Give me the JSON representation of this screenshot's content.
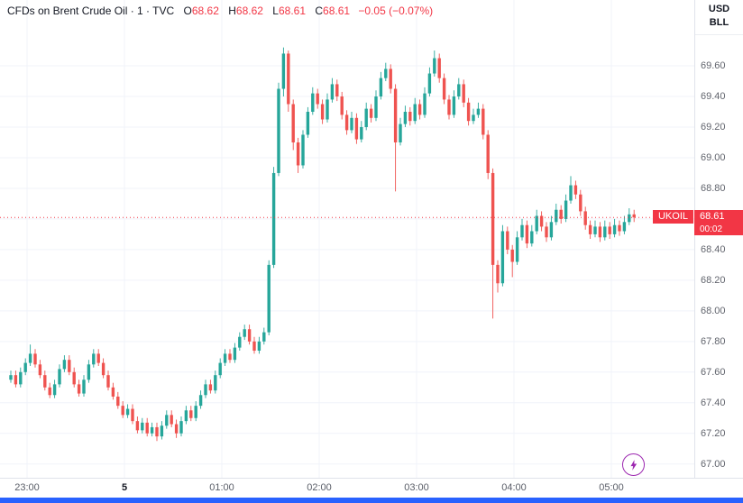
{
  "header": {
    "symbol_title": "CFDs on Brent Crude Oil · 1 · TVC",
    "ohlc": {
      "open_label": "O",
      "open": "68.62",
      "high_label": "H",
      "high": "68.62",
      "low_label": "L",
      "low": "68.61",
      "close_label": "C",
      "close": "68.61",
      "change": "−0.05 (−0.07%)"
    }
  },
  "price_axis": {
    "currency": "USD",
    "unit": "BLL",
    "price_label": {
      "symbol": "UKOIL",
      "price": "68.61",
      "countdown": "00:02"
    }
  },
  "icons": {
    "lightning": "⚡"
  },
  "colors": {
    "up": "#26a69a",
    "down": "#ef5350",
    "accent_red": "#f23645",
    "grid": "#f0f3fa",
    "scrollbar_blue": "#2962ff",
    "lightning_purple": "#9c27b0",
    "title_text": "#131722",
    "axis_text": "#62656e"
  },
  "chart_data": {
    "type": "candlestick",
    "title": "CFDs on Brent Crude Oil",
    "symbol": "UKOIL",
    "exchange": "TVC",
    "timeframe": "1",
    "unit": "USD/BLL",
    "current_price": 68.61,
    "price_range": [
      66.91,
      70.03
    ],
    "y_ticks": [
      69.6,
      69.4,
      69.2,
      69.0,
      68.8,
      68.6,
      68.4,
      68.2,
      68.0,
      67.8,
      67.6,
      67.4,
      67.2,
      67.0
    ],
    "x_ticks": [
      {
        "text": "23:00",
        "min": 10
      },
      {
        "text": "5",
        "min": 70,
        "bold": true
      },
      {
        "text": "01:00",
        "min": 130
      },
      {
        "text": "02:00",
        "min": 190
      },
      {
        "text": "03:00",
        "min": 250
      },
      {
        "text": "04:00",
        "min": 310
      },
      {
        "text": "05:00",
        "min": 370
      }
    ],
    "start_time": "22:50",
    "candle_interval_minutes": 3,
    "candles": [
      [
        67.55,
        67.61,
        67.53,
        67.58
      ],
      [
        67.58,
        67.61,
        67.5,
        67.52
      ],
      [
        67.52,
        67.63,
        67.5,
        67.6
      ],
      [
        67.6,
        67.69,
        67.58,
        67.66
      ],
      [
        67.66,
        67.78,
        67.64,
        67.72
      ],
      [
        67.72,
        67.75,
        67.63,
        67.65
      ],
      [
        67.65,
        67.68,
        67.56,
        67.58
      ],
      [
        67.58,
        67.61,
        67.48,
        67.5
      ],
      [
        67.5,
        67.53,
        67.43,
        67.45
      ],
      [
        67.45,
        67.55,
        67.43,
        67.52
      ],
      [
        67.52,
        67.65,
        67.5,
        67.62
      ],
      [
        67.62,
        67.71,
        67.6,
        67.68
      ],
      [
        67.68,
        67.71,
        67.58,
        67.6
      ],
      [
        67.6,
        67.63,
        67.5,
        67.52
      ],
      [
        67.52,
        67.55,
        67.44,
        67.46
      ],
      [
        67.46,
        67.58,
        67.44,
        67.55
      ],
      [
        67.55,
        67.68,
        67.53,
        67.65
      ],
      [
        67.65,
        67.75,
        67.63,
        67.72
      ],
      [
        67.72,
        67.75,
        67.64,
        67.66
      ],
      [
        67.66,
        67.69,
        67.56,
        67.58
      ],
      [
        67.58,
        67.61,
        67.48,
        67.5
      ],
      [
        67.5,
        67.53,
        67.42,
        67.44
      ],
      [
        67.44,
        67.47,
        67.36,
        67.38
      ],
      [
        67.38,
        67.41,
        67.3,
        67.32
      ],
      [
        67.32,
        67.39,
        67.3,
        67.36
      ],
      [
        67.36,
        67.39,
        67.26,
        67.28
      ],
      [
        67.28,
        67.31,
        67.2,
        67.22
      ],
      [
        67.22,
        67.3,
        67.2,
        67.27
      ],
      [
        67.27,
        67.3,
        67.18,
        67.2
      ],
      [
        67.2,
        67.27,
        67.18,
        67.24
      ],
      [
        67.24,
        67.27,
        67.15,
        67.18
      ],
      [
        67.18,
        67.28,
        67.16,
        67.25
      ],
      [
        67.25,
        67.35,
        67.23,
        67.32
      ],
      [
        67.32,
        67.35,
        67.24,
        67.26
      ],
      [
        67.26,
        67.29,
        67.17,
        67.2
      ],
      [
        67.2,
        67.31,
        67.18,
        67.28
      ],
      [
        67.28,
        67.38,
        67.26,
        67.35
      ],
      [
        67.35,
        67.38,
        67.28,
        67.3
      ],
      [
        67.3,
        67.41,
        67.28,
        67.38
      ],
      [
        67.38,
        67.48,
        67.36,
        67.45
      ],
      [
        67.45,
        67.55,
        67.43,
        67.52
      ],
      [
        67.52,
        67.55,
        67.46,
        67.48
      ],
      [
        67.48,
        67.61,
        67.46,
        67.58
      ],
      [
        67.58,
        67.69,
        67.56,
        67.66
      ],
      [
        67.66,
        67.75,
        67.64,
        67.72
      ],
      [
        67.72,
        67.75,
        67.66,
        67.68
      ],
      [
        67.68,
        67.79,
        67.66,
        67.76
      ],
      [
        67.76,
        67.86,
        67.74,
        67.83
      ],
      [
        67.83,
        67.91,
        67.81,
        67.88
      ],
      [
        67.88,
        67.91,
        67.78,
        67.8
      ],
      [
        67.8,
        67.83,
        67.72,
        67.74
      ],
      [
        67.74,
        67.83,
        67.72,
        67.8
      ],
      [
        67.8,
        67.89,
        67.78,
        67.86
      ],
      [
        67.86,
        68.33,
        67.84,
        68.3
      ],
      [
        68.3,
        68.94,
        68.28,
        68.9
      ],
      [
        68.9,
        69.49,
        68.88,
        69.45
      ],
      [
        69.45,
        69.72,
        69.4,
        69.68
      ],
      [
        69.68,
        69.7,
        69.3,
        69.35
      ],
      [
        69.35,
        69.38,
        69.05,
        69.1
      ],
      [
        69.1,
        69.13,
        68.9,
        68.95
      ],
      [
        68.95,
        69.18,
        68.93,
        69.15
      ],
      [
        69.15,
        69.33,
        69.13,
        69.3
      ],
      [
        69.3,
        69.46,
        69.28,
        69.42
      ],
      [
        69.42,
        69.45,
        69.32,
        69.35
      ],
      [
        69.35,
        69.38,
        69.22,
        69.25
      ],
      [
        69.25,
        69.42,
        69.23,
        69.38
      ],
      [
        69.38,
        69.52,
        69.36,
        69.48
      ],
      [
        69.48,
        69.51,
        69.37,
        69.4
      ],
      [
        69.4,
        69.43,
        69.25,
        69.28
      ],
      [
        69.28,
        69.31,
        69.15,
        69.18
      ],
      [
        69.18,
        69.3,
        69.16,
        69.26
      ],
      [
        69.26,
        69.29,
        69.09,
        69.12
      ],
      [
        69.12,
        69.24,
        69.1,
        69.2
      ],
      [
        69.2,
        69.36,
        69.18,
        69.32
      ],
      [
        69.32,
        69.35,
        69.23,
        69.26
      ],
      [
        69.26,
        69.44,
        69.24,
        69.4
      ],
      [
        69.4,
        69.56,
        69.38,
        69.52
      ],
      [
        69.52,
        69.62,
        69.5,
        69.58
      ],
      [
        69.58,
        69.61,
        69.42,
        69.45
      ],
      [
        69.45,
        69.48,
        68.78,
        69.1
      ],
      [
        69.1,
        69.26,
        69.08,
        69.22
      ],
      [
        69.22,
        69.34,
        69.2,
        69.3
      ],
      [
        69.3,
        69.33,
        69.21,
        69.24
      ],
      [
        69.24,
        69.39,
        69.22,
        69.35
      ],
      [
        69.35,
        69.38,
        69.25,
        69.28
      ],
      [
        69.28,
        69.46,
        69.26,
        69.42
      ],
      [
        69.42,
        69.59,
        69.4,
        69.55
      ],
      [
        69.55,
        69.7,
        69.53,
        69.65
      ],
      [
        69.65,
        69.68,
        69.49,
        69.52
      ],
      [
        69.52,
        69.55,
        69.35,
        69.38
      ],
      [
        69.38,
        69.41,
        69.25,
        69.28
      ],
      [
        69.28,
        69.44,
        69.26,
        69.4
      ],
      [
        69.4,
        69.52,
        69.38,
        69.48
      ],
      [
        69.48,
        69.51,
        69.33,
        69.36
      ],
      [
        69.36,
        69.39,
        69.21,
        69.24
      ],
      [
        69.24,
        69.32,
        69.22,
        69.28
      ],
      [
        69.28,
        69.36,
        69.26,
        69.32
      ],
      [
        69.32,
        69.35,
        69.12,
        69.15
      ],
      [
        69.15,
        69.18,
        68.86,
        68.9
      ],
      [
        68.9,
        68.93,
        67.95,
        68.3
      ],
      [
        68.3,
        68.33,
        68.12,
        68.18
      ],
      [
        68.18,
        68.56,
        68.16,
        68.52
      ],
      [
        68.52,
        68.55,
        68.37,
        68.4
      ],
      [
        68.4,
        68.43,
        68.22,
        68.32
      ],
      [
        68.32,
        68.52,
        68.3,
        68.48
      ],
      [
        68.48,
        68.6,
        68.46,
        68.56
      ],
      [
        68.56,
        68.59,
        68.41,
        68.44
      ],
      [
        68.44,
        68.56,
        68.42,
        68.52
      ],
      [
        68.52,
        68.66,
        68.5,
        68.62
      ],
      [
        68.62,
        68.65,
        68.52,
        68.55
      ],
      [
        68.55,
        68.58,
        68.45,
        68.48
      ],
      [
        68.48,
        68.62,
        68.46,
        68.58
      ],
      [
        68.58,
        68.7,
        68.56,
        68.66
      ],
      [
        68.66,
        68.69,
        68.57,
        68.6
      ],
      [
        68.6,
        68.76,
        68.58,
        68.72
      ],
      [
        68.72,
        68.88,
        68.7,
        68.82
      ],
      [
        68.82,
        68.85,
        68.73,
        68.76
      ],
      [
        68.76,
        68.79,
        68.62,
        68.65
      ],
      [
        68.65,
        68.68,
        68.53,
        68.56
      ],
      [
        68.56,
        68.59,
        68.47,
        68.5
      ],
      [
        68.5,
        68.59,
        68.48,
        68.55
      ],
      [
        68.55,
        68.58,
        68.45,
        68.48
      ],
      [
        68.48,
        68.59,
        68.46,
        68.55
      ],
      [
        68.55,
        68.58,
        68.47,
        68.5
      ],
      [
        68.5,
        68.6,
        68.48,
        68.56
      ],
      [
        68.56,
        68.59,
        68.49,
        68.52
      ],
      [
        68.52,
        68.62,
        68.5,
        68.58
      ],
      [
        68.58,
        68.67,
        68.56,
        68.63
      ],
      [
        68.63,
        68.66,
        68.58,
        68.61
      ]
    ]
  }
}
